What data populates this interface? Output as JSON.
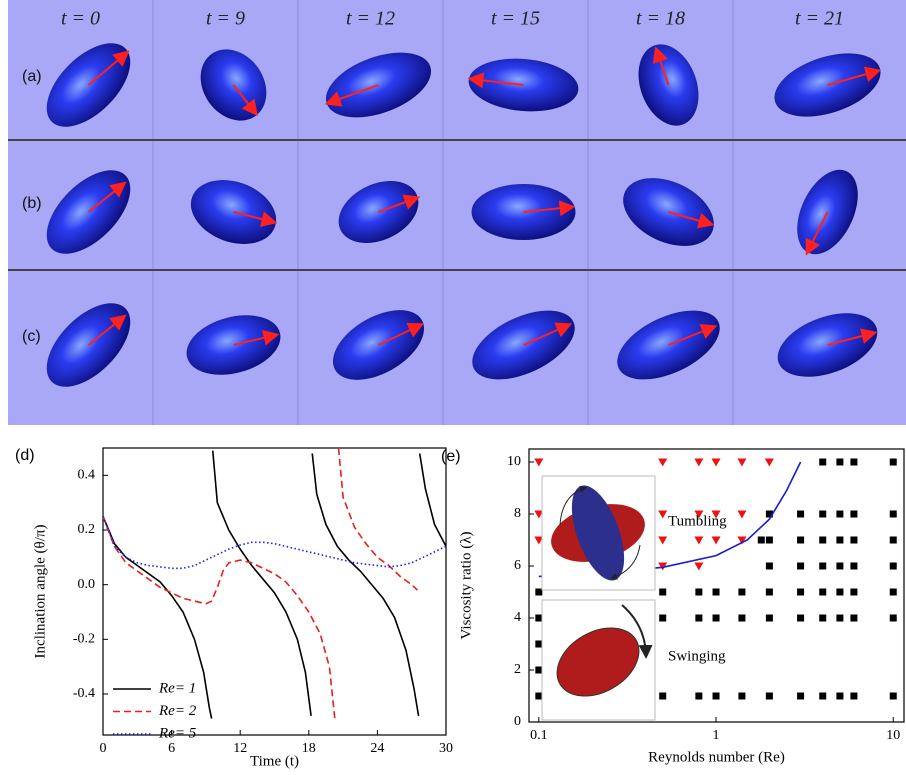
{
  "panels": {
    "column_headers": [
      "t = 0",
      "t = 9",
      "t = 12",
      "t = 15",
      "t = 18",
      "t = 21"
    ],
    "row_labels": [
      "(a)",
      "(b)",
      "(c)"
    ]
  },
  "chart_data": [
    {
      "type": "line",
      "panel_label": "(d)",
      "x_label": "Time (t)",
      "y_label": "Inclination angle (θ/π)",
      "xlim": [
        0,
        30
      ],
      "xticks": [
        0,
        6,
        12,
        18,
        24,
        30
      ],
      "ylim": [
        -0.55,
        0.5
      ],
      "yticks": [
        -0.4,
        -0.2,
        {
          "value": 0,
          "label": "0.0"
        },
        0.2,
        0.4
      ],
      "legend": "lower left",
      "series": [
        {
          "name": "Re= 1",
          "color": "#000000",
          "line_style": "solid",
          "x": [
            0,
            1,
            2,
            3,
            4,
            5,
            6,
            7,
            8,
            8.8,
            9.3,
            9.5,
            9.55,
            9.6,
            10,
            11,
            12,
            13,
            14,
            15,
            16,
            17,
            17.7,
            18.2,
            18.25,
            18.3,
            18.7,
            19.5,
            20.5,
            21.5,
            22.5,
            23.5,
            24.5,
            25.5,
            26.5,
            27.2,
            27.6,
            27.65,
            27.7,
            28.2,
            29,
            30
          ],
          "values": [
            0.25,
            0.15,
            0.1,
            0.07,
            0.04,
            0.01,
            -0.04,
            -0.1,
            -0.2,
            -0.32,
            -0.45,
            -0.49,
            null,
            0.49,
            0.3,
            0.2,
            0.13,
            0.07,
            0.02,
            -0.03,
            -0.1,
            -0.2,
            -0.32,
            -0.48,
            null,
            0.48,
            0.33,
            0.22,
            0.14,
            0.09,
            0.05,
            0.0,
            -0.05,
            -0.12,
            -0.24,
            -0.38,
            -0.48,
            null,
            0.48,
            0.35,
            0.22,
            0.14
          ]
        },
        {
          "name": "Re= 2",
          "color": "#e8201c",
          "line_style": "dashed",
          "x": [
            0,
            1,
            2,
            3,
            4,
            5,
            6,
            7,
            8,
            9,
            9.5,
            10,
            10.5,
            11,
            12,
            13,
            14,
            15,
            16,
            17,
            18,
            19,
            19.8,
            20.3,
            20.45,
            20.6,
            21,
            22,
            23,
            24,
            25,
            26,
            27,
            27.5
          ],
          "values": [
            0.25,
            0.14,
            0.08,
            0.05,
            0.02,
            -0.01,
            -0.03,
            -0.05,
            -0.06,
            -0.07,
            -0.06,
            -0.01,
            0.05,
            0.08,
            0.09,
            0.08,
            0.06,
            0.04,
            0.01,
            -0.04,
            -0.1,
            -0.18,
            -0.3,
            -0.5,
            null,
            0.5,
            0.32,
            0.21,
            0.15,
            0.1,
            0.07,
            0.03,
            0.0,
            -0.02
          ]
        },
        {
          "name": "Re= 5",
          "color": "#1a1aff",
          "line_style": "dotted",
          "x": [
            0,
            1,
            2,
            3,
            4,
            5,
            6,
            7,
            8,
            9,
            10,
            11,
            12,
            13,
            14,
            15,
            16,
            17,
            18,
            19,
            20,
            21,
            22,
            23,
            24,
            25,
            26,
            27,
            28,
            29,
            30
          ],
          "values": [
            0.25,
            0.14,
            0.1,
            0.08,
            0.07,
            0.065,
            0.06,
            0.06,
            0.07,
            0.09,
            0.11,
            0.13,
            0.145,
            0.155,
            0.155,
            0.15,
            0.14,
            0.13,
            0.12,
            0.11,
            0.1,
            0.09,
            0.08,
            0.075,
            0.07,
            0.065,
            0.07,
            0.08,
            0.1,
            0.12,
            0.14
          ]
        }
      ]
    },
    {
      "type": "scatter",
      "panel_label": "(e)",
      "x_label": "Reynolds number (Re)",
      "y_label": "Viscosity ratio (λ)",
      "xscale": "log",
      "xlim": [
        0.088,
        11.5
      ],
      "xticks": [
        0.1,
        1,
        10
      ],
      "ylim": [
        0,
        10.5
      ],
      "yticks": [
        0,
        2,
        4,
        6,
        8,
        10
      ],
      "annotations": [
        "Tumbling",
        "Swinging"
      ],
      "series": [
        {
          "color": "#ee1111",
          "marker": "triangle-down",
          "x": [
            0.1,
            0.5,
            0.8,
            1,
            1.4,
            2,
            0.1,
            0.5,
            0.8,
            1,
            1.4,
            0.1,
            0.5,
            0.8,
            1,
            1.4,
            0.5,
            0.8
          ],
          "values": [
            10,
            10,
            10,
            10,
            10,
            10,
            8,
            8,
            8,
            8,
            8,
            7,
            7,
            7,
            7,
            7,
            6,
            6
          ]
        },
        {
          "color": "#000000",
          "marker": "square",
          "x": [
            4,
            5,
            6,
            10,
            2,
            3,
            4,
            5,
            6,
            10,
            1.8,
            2,
            3,
            4,
            5,
            6,
            10,
            2,
            3,
            4,
            5,
            6,
            10,
            0.1,
            0.5,
            0.8,
            1,
            1.4,
            2,
            3,
            4,
            5,
            6,
            10,
            0.1,
            0.5,
            0.8,
            1,
            1.4,
            2,
            3,
            4,
            5,
            6,
            10,
            0.1,
            0.1,
            0.1,
            0.5,
            0.8,
            1,
            1.4,
            2,
            3,
            4,
            5,
            6,
            10
          ],
          "values": [
            10,
            10,
            10,
            10,
            8,
            8,
            8,
            8,
            8,
            8,
            7,
            7,
            7,
            7,
            7,
            7,
            7,
            6,
            6,
            6,
            6,
            6,
            6,
            5,
            5,
            5,
            5,
            5,
            5,
            5,
            5,
            5,
            5,
            5,
            4,
            4,
            4,
            4,
            4,
            4,
            4,
            4,
            4,
            4,
            4,
            3,
            2,
            1,
            1,
            1,
            1,
            1,
            1,
            1,
            1,
            1,
            1,
            1
          ]
        },
        {
          "type": "line",
          "color": "#1a1acc",
          "line_style": "solid",
          "x": [
            0.1,
            0.2,
            0.5,
            1,
            1.5,
            2,
            2.5,
            3
          ],
          "values": [
            5.6,
            5.7,
            5.95,
            6.4,
            7.0,
            7.8,
            8.9,
            10
          ]
        }
      ]
    }
  ]
}
